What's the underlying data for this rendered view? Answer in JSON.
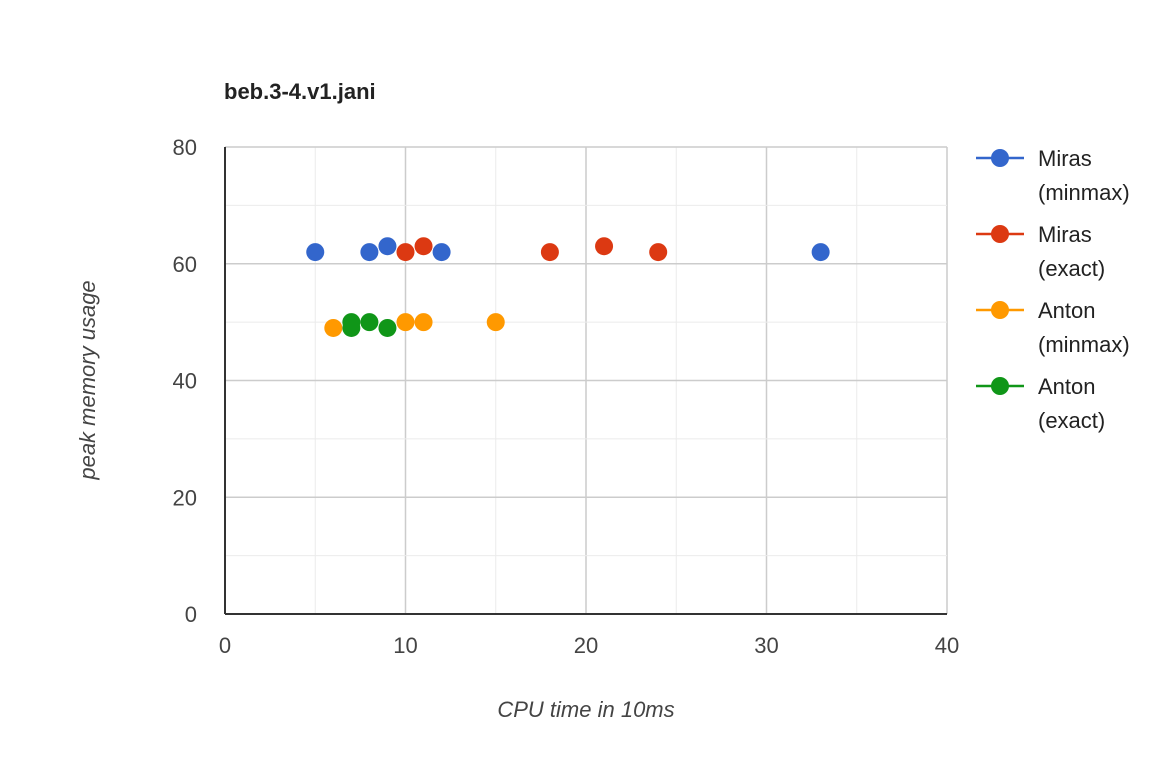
{
  "chart_data": {
    "type": "scatter",
    "title": "beb.3-4.v1.jani",
    "xlabel": "CPU time in 10ms",
    "ylabel": "peak memory usage",
    "xlim": [
      0,
      40
    ],
    "ylim": [
      0,
      80
    ],
    "x_ticks": [
      "0",
      "10",
      "20",
      "30",
      "40"
    ],
    "y_ticks": [
      "0",
      "20",
      "40",
      "60",
      "80"
    ],
    "grid": true,
    "legend_position": "right",
    "series": [
      {
        "name": "Miras (minmax)",
        "legend_lines": [
          "Miras",
          "(minmax)"
        ],
        "color": "#3366cc",
        "points": [
          [
            5,
            62
          ],
          [
            8,
            62
          ],
          [
            9,
            63
          ],
          [
            12,
            62
          ],
          [
            33,
            62
          ]
        ]
      },
      {
        "name": "Miras (exact)",
        "legend_lines": [
          "Miras",
          "(exact)"
        ],
        "color": "#dc3912",
        "points": [
          [
            10,
            62
          ],
          [
            11,
            63
          ],
          [
            18,
            62
          ],
          [
            21,
            63
          ],
          [
            24,
            62
          ]
        ]
      },
      {
        "name": "Anton (minmax)",
        "legend_lines": [
          "Anton",
          "(minmax)"
        ],
        "color": "#ff9900",
        "points": [
          [
            6,
            49
          ],
          [
            10,
            50
          ],
          [
            11,
            50
          ],
          [
            15,
            50
          ]
        ]
      },
      {
        "name": "Anton (exact)",
        "legend_lines": [
          "Anton",
          "(exact)"
        ],
        "color": "#109618",
        "points": [
          [
            7,
            49
          ],
          [
            7,
            50
          ],
          [
            8,
            50
          ],
          [
            9,
            49
          ]
        ]
      }
    ]
  }
}
